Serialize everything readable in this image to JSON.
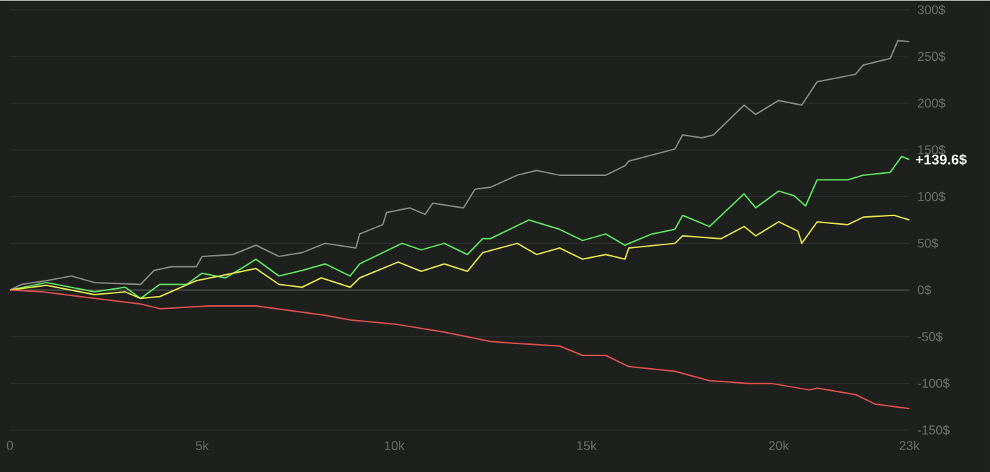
{
  "chart_data": {
    "type": "line",
    "xlim": [
      0,
      23400
    ],
    "ylim": [
      -150,
      310
    ],
    "xticks": [
      0,
      {
        "value": 5000,
        "label": "5k"
      },
      {
        "value": 10000,
        "label": "10k"
      },
      {
        "value": 15000,
        "label": "15k"
      },
      {
        "value": 20000,
        "label": "20k"
      },
      {
        "value": 23400,
        "label": "23k"
      }
    ],
    "yticks": [
      {
        "value": -150,
        "label": "-150$"
      },
      {
        "value": -100,
        "label": "-100$"
      },
      {
        "value": -50,
        "label": "-50$"
      },
      {
        "value": 0,
        "label": "0$"
      },
      {
        "value": 50,
        "label": "50$"
      },
      {
        "value": 100,
        "label": "100$"
      },
      {
        "value": 150,
        "label": "150$"
      },
      {
        "value": 200,
        "label": "200$"
      },
      {
        "value": 250,
        "label": "250$"
      },
      {
        "value": 300,
        "label": "300$"
      }
    ],
    "grid": "y",
    "marker": "none",
    "line_style": "solid",
    "ref_lines": [
      {
        "axis": "y",
        "value": 0,
        "color": "#5a5c5a"
      }
    ],
    "annotations": [
      {
        "text": "+139.6$",
        "x": 23400,
        "y": 139.6
      }
    ],
    "series": [
      {
        "color": "#8c8c8c",
        "x": [
          0,
          300,
          950,
          1600,
          2200,
          3400,
          3750,
          4200,
          4850,
          5000,
          5800,
          6400,
          7000,
          7600,
          8200,
          9000,
          9100,
          9700,
          9800,
          10400,
          10800,
          11000,
          11800,
          12100,
          12500,
          13200,
          13700,
          14300,
          14900,
          15500,
          16000,
          16100,
          17300,
          17500,
          18000,
          18300,
          19100,
          19400,
          20000,
          20600,
          21000,
          22000,
          22200,
          22900,
          23100,
          23400
        ],
        "values": [
          0,
          6,
          10,
          15,
          8,
          6,
          21,
          25,
          25,
          36,
          38,
          48,
          36,
          40,
          50,
          45,
          60,
          70,
          83,
          88,
          81,
          93,
          88,
          108,
          110,
          123,
          128,
          123,
          123,
          123,
          133,
          138,
          151,
          166,
          163,
          166,
          198,
          188,
          203,
          198,
          223,
          231,
          241,
          248,
          267,
          266
        ]
      },
      {
        "color": "#5ee85e",
        "x": [
          0,
          950,
          2200,
          3000,
          3400,
          3900,
          4600,
          5000,
          5600,
          6100,
          6400,
          7000,
          7600,
          8200,
          8850,
          9100,
          10200,
          10700,
          11300,
          11900,
          12300,
          12500,
          13500,
          14300,
          14900,
          15500,
          16000,
          16700,
          17300,
          17500,
          18200,
          19100,
          19400,
          20000,
          20400,
          20700,
          21000,
          21800,
          22200,
          22900,
          23200,
          23400
        ],
        "values": [
          0,
          8,
          -2,
          3,
          -9,
          6,
          6,
          18,
          13,
          25,
          33,
          15,
          21,
          28,
          15,
          28,
          50,
          43,
          50,
          38,
          55,
          55,
          75,
          65,
          53,
          60,
          48,
          60,
          65,
          80,
          68,
          103,
          88,
          106,
          101,
          90,
          118,
          118,
          123,
          126,
          143,
          139.6
        ]
      },
      {
        "color": "#e8e84a",
        "x": [
          0,
          950,
          2200,
          3000,
          3400,
          3900,
          4850,
          5800,
          6400,
          7000,
          7600,
          8100,
          8850,
          9100,
          10100,
          10700,
          11300,
          11900,
          12300,
          13200,
          13700,
          14300,
          14900,
          15500,
          16000,
          16100,
          17300,
          17500,
          18500,
          19100,
          19400,
          20000,
          20500,
          20600,
          21000,
          21800,
          22200,
          23000,
          23400
        ],
        "values": [
          0,
          5,
          -5,
          -2,
          -9,
          -7,
          10,
          18,
          23,
          6,
          3,
          13,
          3,
          13,
          30,
          20,
          28,
          20,
          40,
          50,
          38,
          45,
          33,
          38,
          33,
          45,
          50,
          58,
          55,
          68,
          58,
          73,
          63,
          50,
          73,
          70,
          78,
          80,
          75
        ]
      },
      {
        "color": "#e05050",
        "x": [
          0,
          850,
          2200,
          3400,
          3900,
          5200,
          6400,
          8200,
          8850,
          10100,
          11300,
          12500,
          13100,
          14300,
          14900,
          15500,
          16100,
          17300,
          18200,
          19200,
          19800,
          20800,
          21000,
          22000,
          22500,
          23400
        ],
        "values": [
          0,
          -2,
          -9,
          -15,
          -20,
          -17,
          -17,
          -27,
          -32,
          -37,
          -45,
          -55,
          -57,
          -60,
          -70,
          -70,
          -82,
          -87,
          -97,
          -100,
          -100,
          -107,
          -105,
          -112,
          -122,
          -127
        ]
      }
    ]
  }
}
